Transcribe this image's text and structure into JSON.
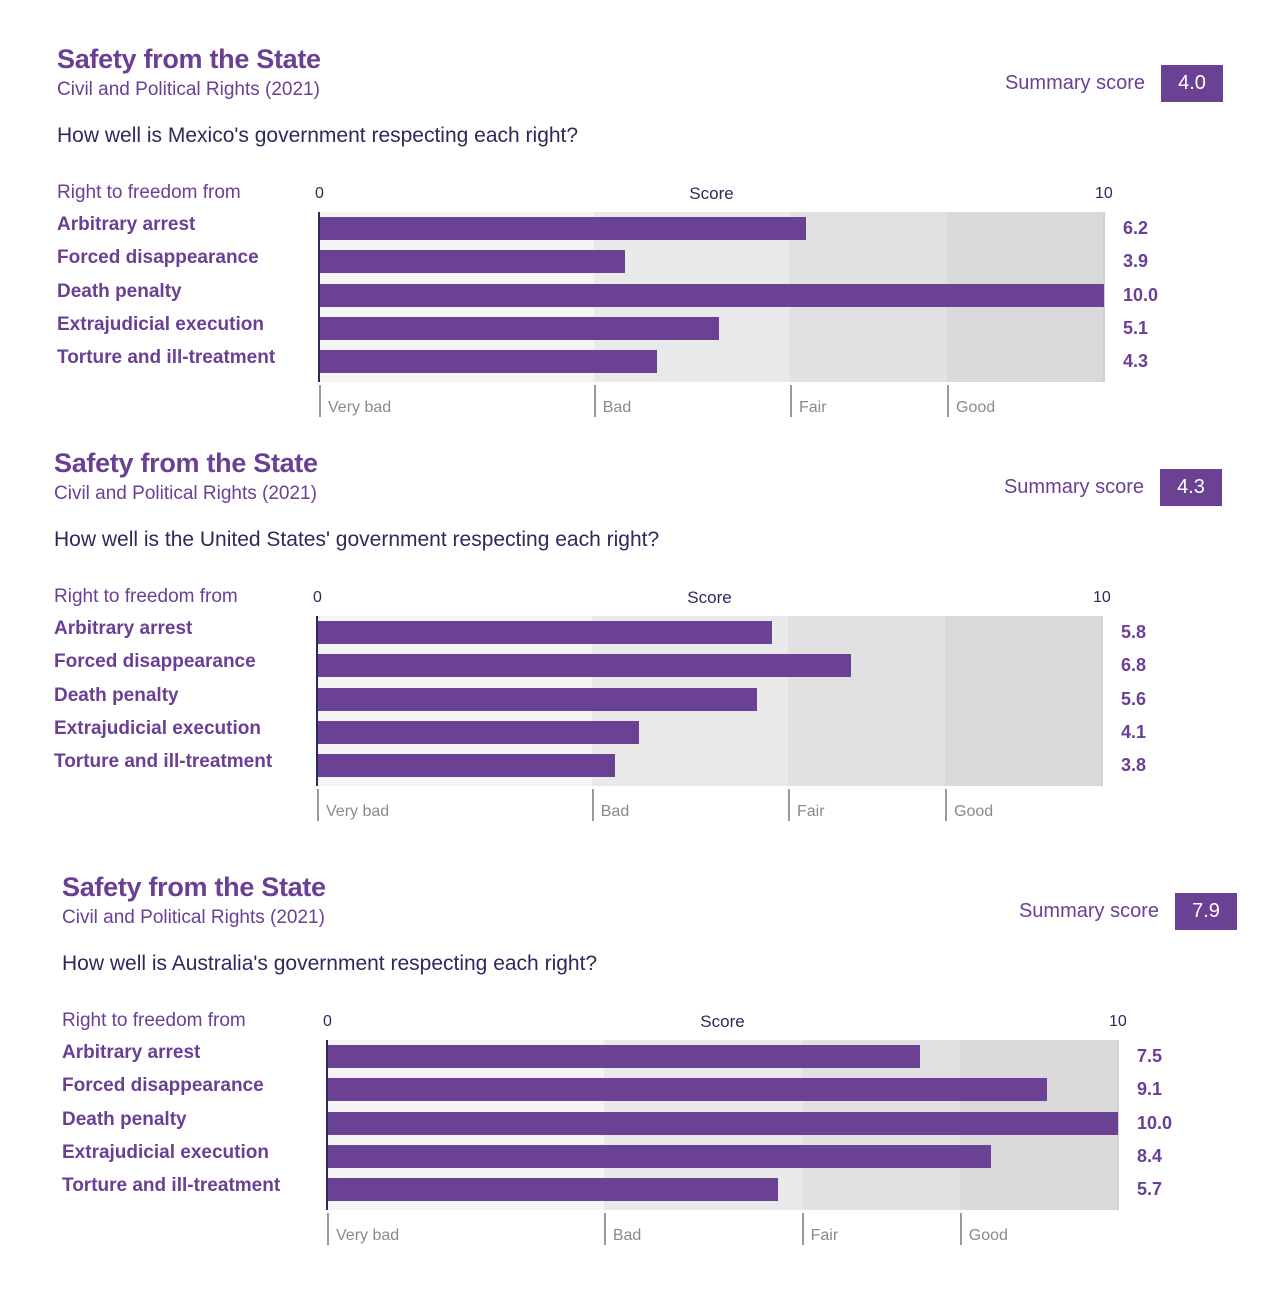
{
  "colors": {
    "accent": "#6a4193",
    "title": "#6a3f94",
    "text_dark": "#2b2a5c",
    "band_very_bad": "#f4f4f4",
    "band_bad": "#e9e9e9",
    "band_fair": "#e1e1e1",
    "band_good": "#d9d9d9"
  },
  "panels": [
    {
      "title": "Safety from the State",
      "subtitle": "Civil and Political Rights (2021)",
      "question": "How well is Mexico's government respecting each right?",
      "summary_label": "Summary score",
      "summary_score": "4.0",
      "column_header": "Right to freedom from"
    },
    {
      "title": "Safety from the State",
      "subtitle": "Civil and Political Rights (2021)",
      "question": "How well is the United States' government respecting each right?",
      "summary_label": "Summary score",
      "summary_score": "4.3",
      "column_header": "Right to freedom from"
    },
    {
      "title": "Safety from the State",
      "subtitle": "Civil and Political Rights (2021)",
      "question": "How well is Australia's government respecting each right?",
      "summary_label": "Summary score",
      "summary_score": "7.9",
      "column_header": "Right to freedom from"
    }
  ],
  "chart_data": [
    {
      "type": "bar",
      "orientation": "horizontal",
      "title": "Safety from the State",
      "subtitle": "Civil and Political Rights (2021)",
      "country": "Mexico",
      "xlabel": "Score",
      "xlim": [
        0,
        10
      ],
      "x_ticks": [
        "0",
        "10"
      ],
      "categories": [
        "Arbitrary arrest",
        "Forced disappearance",
        "Death penalty",
        "Extrajudicial execution",
        "Torture and ill-treatment"
      ],
      "values": [
        6.2,
        3.9,
        10.0,
        5.1,
        4.3
      ],
      "value_labels": [
        "6.2",
        "3.9",
        "10.0",
        "5.1",
        "4.3"
      ],
      "rating_bands": [
        {
          "label": "Very bad",
          "from": 0,
          "to": 3.5
        },
        {
          "label": "Bad",
          "from": 3.5,
          "to": 6
        },
        {
          "label": "Fair",
          "from": 6,
          "to": 8
        },
        {
          "label": "Good",
          "from": 8,
          "to": 10
        }
      ],
      "summary_score": 4.0
    },
    {
      "type": "bar",
      "orientation": "horizontal",
      "title": "Safety from the State",
      "subtitle": "Civil and Political Rights (2021)",
      "country": "United States",
      "xlabel": "Score",
      "xlim": [
        0,
        10
      ],
      "x_ticks": [
        "0",
        "10"
      ],
      "categories": [
        "Arbitrary arrest",
        "Forced disappearance",
        "Death penalty",
        "Extrajudicial execution",
        "Torture and ill-treatment"
      ],
      "values": [
        5.8,
        6.8,
        5.6,
        4.1,
        3.8
      ],
      "value_labels": [
        "5.8",
        "6.8",
        "5.6",
        "4.1",
        "3.8"
      ],
      "rating_bands": [
        {
          "label": "Very bad",
          "from": 0,
          "to": 3.5
        },
        {
          "label": "Bad",
          "from": 3.5,
          "to": 6
        },
        {
          "label": "Fair",
          "from": 6,
          "to": 8
        },
        {
          "label": "Good",
          "from": 8,
          "to": 10
        }
      ],
      "summary_score": 4.3
    },
    {
      "type": "bar",
      "orientation": "horizontal",
      "title": "Safety from the State",
      "subtitle": "Civil and Political Rights (2021)",
      "country": "Australia",
      "xlabel": "Score",
      "xlim": [
        0,
        10
      ],
      "x_ticks": [
        "0",
        "10"
      ],
      "categories": [
        "Arbitrary arrest",
        "Forced disappearance",
        "Death penalty",
        "Extrajudicial execution",
        "Torture and ill-treatment"
      ],
      "values": [
        7.5,
        9.1,
        10.0,
        8.4,
        5.7
      ],
      "value_labels": [
        "7.5",
        "9.1",
        "10.0",
        "8.4",
        "5.7"
      ],
      "rating_bands": [
        {
          "label": "Very bad",
          "from": 0,
          "to": 3.5
        },
        {
          "label": "Bad",
          "from": 3.5,
          "to": 6
        },
        {
          "label": "Fair",
          "from": 6,
          "to": 8
        },
        {
          "label": "Good",
          "from": 8,
          "to": 10
        }
      ],
      "summary_score": 7.9
    }
  ]
}
